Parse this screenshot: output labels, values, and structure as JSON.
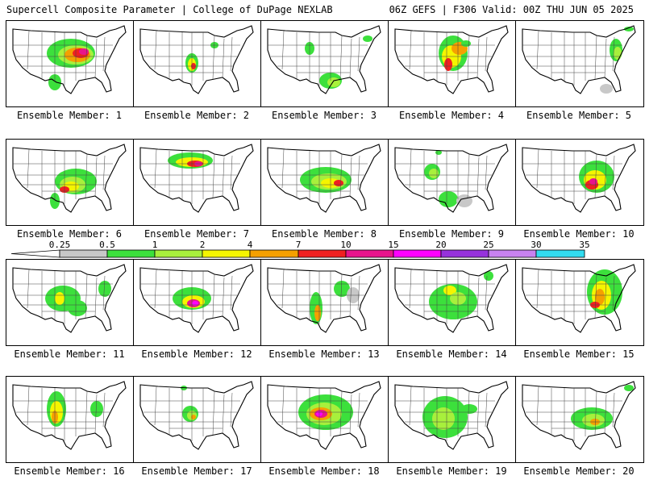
{
  "header": {
    "title_left": "Supercell Composite Parameter | College of DuPage NEXLAB",
    "title_right": "06Z GEFS | F306 Valid: 00Z THU JUN 05 2025"
  },
  "members": [
    {
      "label": "Ensemble Member: 1"
    },
    {
      "label": "Ensemble Member: 2"
    },
    {
      "label": "Ensemble Member: 3"
    },
    {
      "label": "Ensemble Member: 4"
    },
    {
      "label": "Ensemble Member: 5"
    },
    {
      "label": "Ensemble Member: 6"
    },
    {
      "label": "Ensemble Member: 7"
    },
    {
      "label": "Ensemble Member: 8"
    },
    {
      "label": "Ensemble Member: 9"
    },
    {
      "label": "Ensemble Member: 10"
    },
    {
      "label": "Ensemble Member: 11"
    },
    {
      "label": "Ensemble Member: 12"
    },
    {
      "label": "Ensemble Member: 13"
    },
    {
      "label": "Ensemble Member: 14"
    },
    {
      "label": "Ensemble Member: 15"
    },
    {
      "label": "Ensemble Member: 16"
    },
    {
      "label": "Ensemble Member: 17"
    },
    {
      "label": "Ensemble Member: 18"
    },
    {
      "label": "Ensemble Member: 19"
    },
    {
      "label": "Ensemble Member: 20"
    }
  ],
  "colorbar": {
    "ticks": [
      "0.25",
      "0.5",
      "1",
      "2",
      "4",
      "7",
      "10",
      "15",
      "20",
      "25",
      "30",
      "35"
    ],
    "colors": [
      "#c8c8c8",
      "#3ce03c",
      "#a8f03c",
      "#f5f500",
      "#f5a000",
      "#f02020",
      "#e8148c",
      "#ff00ff",
      "#9632dc",
      "#c882f0",
      "#32dcf0"
    ]
  }
}
